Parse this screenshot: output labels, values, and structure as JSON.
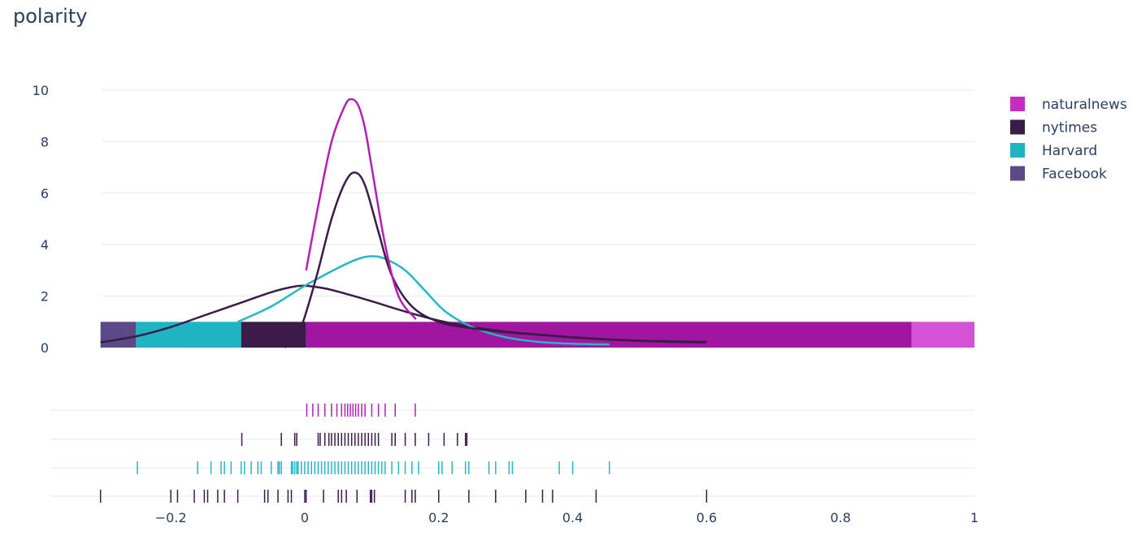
{
  "colors": {
    "naturalnews": "#c62cbf",
    "nytimes": "#3b1b47",
    "Harvard": "#1fb3c4",
    "Facebook": "#5c4a86",
    "grid": "#e6e9ef"
  },
  "chart_data": {
    "type": "histogram-density-rug",
    "title": "polarity",
    "xlabel": "",
    "ylabel": "",
    "xlim": [
      -0.38,
      1.0
    ],
    "ylim": [
      0,
      10.5
    ],
    "x_ticks": [
      -0.2,
      0,
      0.2,
      0.4,
      0.6,
      0.8,
      1
    ],
    "x_tick_labels": [
      "−0.2",
      "0",
      "0.2",
      "0.4",
      "0.6",
      "0.8",
      "1"
    ],
    "y_ticks": [
      0,
      2,
      4,
      6,
      8,
      10
    ],
    "y_tick_labels": [
      "0",
      "2",
      "4",
      "6",
      "8",
      "10"
    ],
    "grid": true,
    "legend_position": "right",
    "legend": [
      "naturalnews",
      "nytimes",
      "Harvard",
      "Facebook"
    ],
    "histogram_bars": [
      {
        "series": "Facebook",
        "x0": -0.305,
        "x1": -0.252,
        "height": 1,
        "color": "#5c4a86"
      },
      {
        "series": "Harvard",
        "x0": -0.252,
        "x1": -0.095,
        "height": 1,
        "color": "#1fb3c4"
      },
      {
        "series": "nytimes",
        "x0": -0.095,
        "x1": 0.002,
        "height": 1,
        "color": "#3b1b47"
      },
      {
        "series": "naturalnews",
        "x0": 0.002,
        "x1": 0.906,
        "height": 1,
        "color": "#a016a0"
      },
      {
        "series": "naturalnews",
        "x0": 0.906,
        "x1": 1.0,
        "height": 1,
        "color": "#d452d6"
      }
    ],
    "series": [
      {
        "name": "naturalnews",
        "color": "#b61fb5",
        "density_x": [
          0.002,
          0.02,
          0.04,
          0.06,
          0.07,
          0.08,
          0.09,
          0.1,
          0.12,
          0.14,
          0.166
        ],
        "density_y": [
          3.0,
          5.5,
          8.0,
          9.4,
          9.65,
          9.4,
          8.5,
          7.0,
          4.0,
          2.0,
          1.1
        ],
        "rug": [
          0.003,
          0.012,
          0.02,
          0.03,
          0.04,
          0.048,
          0.055,
          0.06,
          0.064,
          0.068,
          0.072,
          0.076,
          0.08,
          0.085,
          0.09,
          0.1,
          0.11,
          0.12,
          0.135,
          0.165
        ]
      },
      {
        "name": "nytimes",
        "color": "#3b1b47",
        "density_x": [
          -0.03,
          -0.01,
          0.0,
          0.02,
          0.04,
          0.06,
          0.075,
          0.09,
          0.11,
          0.13,
          0.16,
          0.2,
          0.25,
          0.3,
          0.35,
          0.4,
          0.45,
          0.5,
          0.55,
          0.6
        ],
        "density_y": [
          0.0,
          0.6,
          1.2,
          3.0,
          5.0,
          6.4,
          6.8,
          6.3,
          4.5,
          2.8,
          1.6,
          1.0,
          0.75,
          0.6,
          0.5,
          0.4,
          0.32,
          0.27,
          0.24,
          0.22
        ],
        "rug": [
          -0.094,
          -0.035,
          -0.015,
          -0.012,
          0.02,
          0.023,
          0.03,
          0.036,
          0.04,
          0.045,
          0.05,
          0.055,
          0.06,
          0.065,
          0.07,
          0.075,
          0.08,
          0.085,
          0.09,
          0.095,
          0.1,
          0.105,
          0.11,
          0.13,
          0.135,
          0.15,
          0.165,
          0.185,
          0.208,
          0.228,
          0.24,
          0.242
        ]
      },
      {
        "name": "Harvard",
        "color": "#25b7c4",
        "density_x": [
          -0.1,
          -0.05,
          0.0,
          0.05,
          0.08,
          0.1,
          0.12,
          0.15,
          0.18,
          0.21,
          0.25,
          0.3,
          0.35,
          0.4,
          0.455
        ],
        "density_y": [
          1.0,
          1.6,
          2.4,
          3.1,
          3.45,
          3.55,
          3.45,
          3.0,
          2.2,
          1.4,
          0.8,
          0.4,
          0.22,
          0.15,
          0.12
        ],
        "rug": [
          -0.25,
          -0.16,
          -0.14,
          -0.125,
          -0.12,
          -0.11,
          -0.095,
          -0.09,
          -0.08,
          -0.07,
          -0.065,
          -0.05,
          -0.04,
          -0.038,
          -0.035,
          -0.02,
          -0.018,
          -0.015,
          -0.012,
          -0.01,
          -0.005,
          0.0,
          0.005,
          0.01,
          0.015,
          0.02,
          0.025,
          0.03,
          0.035,
          0.04,
          0.045,
          0.05,
          0.055,
          0.06,
          0.065,
          0.07,
          0.075,
          0.08,
          0.085,
          0.09,
          0.095,
          0.1,
          0.105,
          0.11,
          0.115,
          0.12,
          0.13,
          0.14,
          0.15,
          0.16,
          0.17,
          0.2,
          0.205,
          0.22,
          0.24,
          0.245,
          0.275,
          0.285,
          0.305,
          0.31,
          0.38,
          0.4,
          0.455
        ]
      },
      {
        "name": "Facebook",
        "color": "#3b1b47",
        "density_x": [
          -0.305,
          -0.25,
          -0.2,
          -0.15,
          -0.1,
          -0.05,
          -0.02,
          0.0,
          0.03,
          0.06,
          0.1,
          0.15,
          0.2,
          0.25,
          0.3,
          0.35,
          0.4,
          0.45,
          0.5,
          0.55,
          0.6
        ],
        "density_y": [
          0.2,
          0.45,
          0.8,
          1.25,
          1.7,
          2.15,
          2.35,
          2.4,
          2.3,
          2.1,
          1.8,
          1.4,
          1.05,
          0.8,
          0.62,
          0.5,
          0.4,
          0.32,
          0.26,
          0.22,
          0.2
        ],
        "rug": [
          -0.305,
          -0.2,
          -0.19,
          -0.165,
          -0.15,
          -0.145,
          -0.13,
          -0.12,
          -0.1,
          -0.06,
          -0.055,
          -0.04,
          -0.025,
          -0.02,
          0.0,
          0.002,
          0.028,
          0.05,
          0.055,
          0.062,
          0.078,
          0.098,
          0.1,
          0.104,
          0.15,
          0.16,
          0.165,
          0.2,
          0.245,
          0.285,
          0.33,
          0.355,
          0.37,
          0.435,
          0.6
        ]
      }
    ]
  }
}
